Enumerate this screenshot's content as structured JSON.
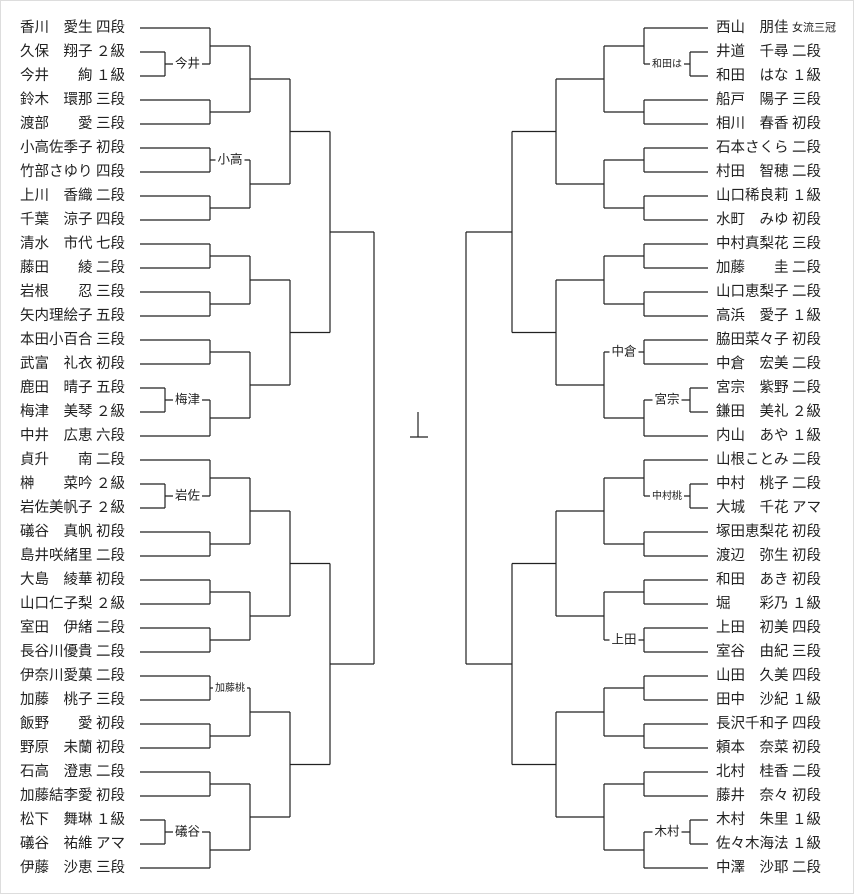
{
  "left": {
    "players": [
      {
        "name": "香川　愛生",
        "rank": "四段"
      },
      {
        "name": "久保　翔子",
        "rank": "２級"
      },
      {
        "name": "今井　　絢",
        "rank": "１級"
      },
      {
        "name": "鈴木　環那",
        "rank": "三段"
      },
      {
        "name": "渡部　　愛",
        "rank": "三段",
        "color": "#e07b26"
      },
      {
        "name": "小高佐季子",
        "rank": "初段"
      },
      {
        "name": "竹部さゆり",
        "rank": "四段"
      },
      {
        "name": "上川　香織",
        "rank": "二段",
        "color": "#e07b26"
      },
      {
        "name": "千葉　涼子",
        "rank": "四段"
      },
      {
        "name": "清水　市代",
        "rank": "七段"
      },
      {
        "name": "藤田　　綾",
        "rank": "二段"
      },
      {
        "name": "岩根　　忍",
        "rank": "三段"
      },
      {
        "name": "矢内理絵子",
        "rank": "五段"
      },
      {
        "name": "本田小百合",
        "rank": "三段"
      },
      {
        "name": "武富　礼衣",
        "rank": "初段"
      },
      {
        "name": "鹿田　晴子",
        "rank": "五段"
      },
      {
        "name": "梅津　美琴",
        "rank": "２級"
      },
      {
        "name": "中井　広恵",
        "rank": "六段"
      },
      {
        "name": "貞升　　南",
        "rank": "二段"
      },
      {
        "name": "榊　　菜吟",
        "rank": "２級"
      },
      {
        "name": "岩佐美帆子",
        "rank": "２級"
      },
      {
        "name": "礒谷　真帆",
        "rank": "初段",
        "color": "#e07b26"
      },
      {
        "name": "島井咲緒里",
        "rank": "二段",
        "color": "#e07b26"
      },
      {
        "name": "大島　綾華",
        "rank": "初段"
      },
      {
        "name": "山口仁子梨",
        "rank": "２級"
      },
      {
        "name": "室田　伊緒",
        "rank": "二段"
      },
      {
        "name": "長谷川優貴",
        "rank": "二段"
      },
      {
        "name": "伊奈川愛菓",
        "rank": "二段"
      },
      {
        "name": "加藤　桃子",
        "rank": "三段"
      },
      {
        "name": "飯野　　愛",
        "rank": "初段"
      },
      {
        "name": "野原　未蘭",
        "rank": "初段"
      },
      {
        "name": "石高　澄恵",
        "rank": "二段"
      },
      {
        "name": "加藤結李愛",
        "rank": "初段"
      },
      {
        "name": "松下　舞琳",
        "rank": "１級"
      },
      {
        "name": "礒谷　祐維",
        "rank": "アマ",
        "color": "#1aa34a"
      },
      {
        "name": "伊藤　沙恵",
        "rank": "三段"
      }
    ],
    "winners": [
      {
        "label": "今井"
      },
      {
        "label": "小高"
      },
      {
        "label": "梅津"
      },
      {
        "label": "岩佐"
      },
      {
        "label": "加藤桃"
      },
      {
        "label": "礒谷",
        "color": "#1aa34a"
      }
    ]
  },
  "right": {
    "players": [
      {
        "name": "西山　朋佳",
        "rank": "女流三冠"
      },
      {
        "name": "井道　千尋",
        "rank": "二段"
      },
      {
        "name": "和田　はな",
        "rank": "１級"
      },
      {
        "name": "船戸　陽子",
        "rank": "三段",
        "color": "#e07b26"
      },
      {
        "name": "相川　春香",
        "rank": "初段"
      },
      {
        "name": "石本さくら",
        "rank": "二段"
      },
      {
        "name": "村田　智穂",
        "rank": "二段"
      },
      {
        "name": "山口稀良莉",
        "rank": "１級"
      },
      {
        "name": "水町　みゆ",
        "rank": "初段"
      },
      {
        "name": "中村真梨花",
        "rank": "三段"
      },
      {
        "name": "加藤　　圭",
        "rank": "二段"
      },
      {
        "name": "山口恵梨子",
        "rank": "二段"
      },
      {
        "name": "高浜　愛子",
        "rank": "１級"
      },
      {
        "name": "脇田菜々子",
        "rank": "初段"
      },
      {
        "name": "中倉　宏美",
        "rank": "二段",
        "color": "#e07b26"
      },
      {
        "name": "宮宗　紫野",
        "rank": "二段"
      },
      {
        "name": "鎌田　美礼",
        "rank": "２級"
      },
      {
        "name": "内山　あや",
        "rank": "１級"
      },
      {
        "name": "山根ことみ",
        "rank": "二段"
      },
      {
        "name": "中村　桃子",
        "rank": "二段"
      },
      {
        "name": "大城　千花",
        "rank": "アマ",
        "color": "#1aa34a"
      },
      {
        "name": "塚田恵梨花",
        "rank": "初段"
      },
      {
        "name": "渡辺　弥生",
        "rank": "初段"
      },
      {
        "name": "和田　あき",
        "rank": "初段"
      },
      {
        "name": "堀　　彩乃",
        "rank": "１級",
        "color": "#e07b26"
      },
      {
        "name": "上田　初美",
        "rank": "四段"
      },
      {
        "name": "室谷　由紀",
        "rank": "三段"
      },
      {
        "name": "山田　久美",
        "rank": "四段"
      },
      {
        "name": "田中　沙紀",
        "rank": "１級",
        "color": "#e07b26"
      },
      {
        "name": "長沢千和子",
        "rank": "四段"
      },
      {
        "name": "頼本　奈菜",
        "rank": "初段"
      },
      {
        "name": "北村　桂香",
        "rank": "二段"
      },
      {
        "name": "藤井　奈々",
        "rank": "初段"
      },
      {
        "name": "木村　朱里",
        "rank": "１級"
      },
      {
        "name": "佐々木海法",
        "rank": "１級"
      },
      {
        "name": "中澤　沙耶",
        "rank": "二段"
      }
    ],
    "winners": [
      {
        "label": "和田は"
      },
      {
        "label": "中倉",
        "color": "#e07b26"
      },
      {
        "label": "宮宗"
      },
      {
        "label": "中村桃"
      },
      {
        "label": "上田"
      },
      {
        "label": "木村"
      }
    ]
  }
}
